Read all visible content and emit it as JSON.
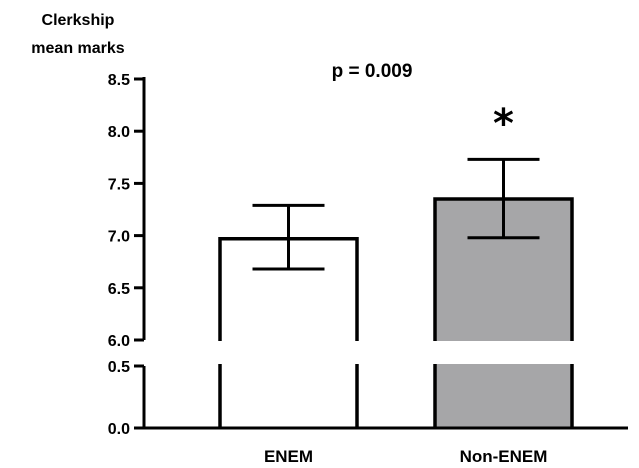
{
  "chart_data": {
    "type": "bar",
    "ylabel_line1": "Clerkship",
    "ylabel_line2": "mean marks",
    "categories": [
      "ENEM",
      "Non-ENEM"
    ],
    "values": [
      6.97,
      7.35
    ],
    "error_low": [
      6.68,
      6.98
    ],
    "error_high": [
      7.29,
      7.73
    ],
    "bar_colors": [
      "#ffffff",
      "#a6a6a8"
    ],
    "y_axis_break": true,
    "ylim_lower_segment": [
      0.0,
      0.5
    ],
    "ylim_upper_segment": [
      6.0,
      8.5
    ],
    "lower_ticks": [
      {
        "value": 0.0,
        "label": "0.0"
      },
      {
        "value": 0.5,
        "label": "0.5"
      }
    ],
    "upper_ticks": [
      {
        "value": 6.0,
        "label": "6.0"
      },
      {
        "value": 6.5,
        "label": "6.5"
      },
      {
        "value": 7.0,
        "label": "7.0"
      },
      {
        "value": 7.5,
        "label": "7.5"
      },
      {
        "value": 8.0,
        "label": "8.0"
      },
      {
        "value": 8.5,
        "label": "8.5"
      }
    ],
    "annotation": "p = 0.009",
    "significance_marker": "*",
    "grid": false
  }
}
